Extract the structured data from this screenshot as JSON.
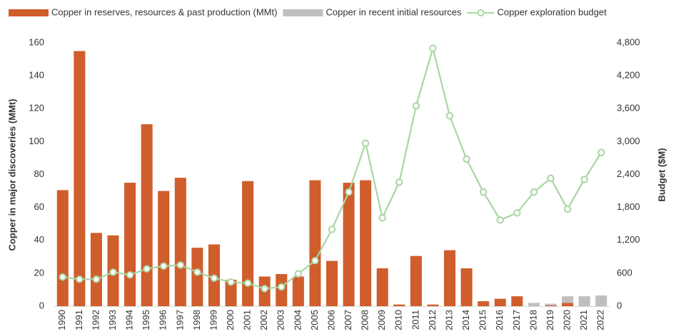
{
  "chart_data": {
    "type": "combo",
    "y_label": "Copper in major discoveries (MMt)",
    "y2_label": "Budget ($M)",
    "categories": [
      "1990",
      "1991",
      "1992",
      "1993",
      "1994",
      "1995",
      "1996",
      "1997",
      "1998",
      "1999",
      "2000",
      "2001",
      "2002",
      "2003",
      "2004",
      "2005",
      "2006",
      "2007",
      "2008",
      "2009",
      "2010",
      "2011",
      "2012",
      "2013",
      "2014",
      "2015",
      "2016",
      "2017",
      "2018",
      "2019",
      "2020",
      "2021",
      "2022"
    ],
    "series": [
      {
        "name": "Copper in reserves, resources & past production (MMt)",
        "type": "bar",
        "color": "#d05d2c",
        "values": [
          70.5,
          155,
          44.5,
          43,
          75,
          110.5,
          70,
          78,
          35.5,
          37.5,
          16,
          76,
          18,
          19.5,
          18,
          76.5,
          27.5,
          75,
          76.5,
          23,
          1,
          30.5,
          1,
          34,
          23,
          3,
          4.5,
          6,
          0,
          0.5,
          2,
          0,
          0
        ]
      },
      {
        "name": "Copper in recent initial resources",
        "type": "bar",
        "color": "#bfbfbf",
        "values": [
          0,
          0,
          0,
          0,
          0,
          0,
          0,
          0,
          0,
          0,
          0,
          0,
          0,
          0,
          0,
          0,
          0,
          0,
          0,
          0,
          0,
          0,
          0,
          0,
          0,
          0,
          0,
          0,
          2,
          1,
          4,
          6,
          6.5
        ]
      },
      {
        "name": "Copper exploration budget",
        "type": "line",
        "axis": "y2",
        "color": "#a9d6a3",
        "values": [
          530,
          490,
          490,
          620,
          570,
          680,
          730,
          750,
          620,
          510,
          440,
          420,
          320,
          350,
          590,
          830,
          1400,
          2080,
          2970,
          1610,
          2260,
          3650,
          4700,
          3470,
          2680,
          2080,
          1570,
          1700,
          2080,
          2330,
          1770,
          2310,
          2800
        ]
      }
    ],
    "ylim": [
      0,
      160
    ],
    "yticks": [
      0,
      20,
      40,
      60,
      80,
      100,
      120,
      140,
      160
    ],
    "y2lim": [
      0,
      4800
    ],
    "y2ticks": [
      0,
      600,
      {
        "value": 1200,
        "label": "1,200"
      },
      {
        "value": 1800,
        "label": "1,800"
      },
      {
        "value": 2400,
        "label": "2,400"
      },
      {
        "value": 3000,
        "label": "3,000"
      },
      {
        "value": 3600,
        "label": "3,600"
      },
      {
        "value": 4200,
        "label": "4,200"
      },
      {
        "value": 4800,
        "label": "4,800"
      }
    ],
    "legend": "top",
    "grid": false
  }
}
